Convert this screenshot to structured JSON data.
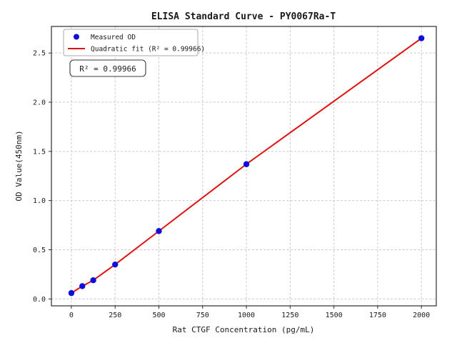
{
  "chart_data": {
    "type": "scatter",
    "title": "ELISA Standard Curve - PY0067Ra-T",
    "xlabel": "Rat CTGF Concentration (pg/mL)",
    "ylabel": "OD Value(450nm)",
    "xlim": [
      -114,
      2085
    ],
    "ylim": [
      -0.07,
      2.77
    ],
    "xticks": [
      0,
      250,
      500,
      750,
      1000,
      1250,
      1500,
      1750,
      2000
    ],
    "yticks": [
      0,
      0.5,
      1.0,
      1.5,
      2.0,
      2.5
    ],
    "ytick_labels": [
      "0.0",
      "0.5",
      "1.0",
      "1.5",
      "2.0",
      "2.5"
    ],
    "grid": true,
    "r_squared": 0.99966,
    "annotation": {
      "text": "R² = 0.99966"
    },
    "legend": {
      "position": "upper left",
      "entries": [
        {
          "label": "Measured OD",
          "marker": "circle",
          "color": "#0d0de0"
        },
        {
          "label": "Quadratic fit (R² = 0.99966)",
          "marker": "line",
          "color": "#e01111"
        }
      ]
    },
    "series": [
      {
        "name": "Measured OD",
        "type": "scatter",
        "color": "#0d0de0",
        "x": [
          0,
          62.5,
          125,
          250,
          500,
          1000,
          2000
        ],
        "y": [
          0.06,
          0.13,
          0.19,
          0.35,
          0.69,
          1.37,
          2.65
        ]
      },
      {
        "name": "Quadratic fit (R² = 0.99966)",
        "type": "line",
        "color": "#e01111",
        "x": [
          0,
          62.5,
          125,
          250,
          500,
          1000,
          2000
        ],
        "y": [
          0.06,
          0.13,
          0.19,
          0.35,
          0.69,
          1.37,
          2.65
        ]
      }
    ],
    "colors": {
      "points": "#0d0de0",
      "fit_line": "#e01111",
      "grid": "#c9c9c9",
      "spine": "#2b2b2b"
    }
  }
}
